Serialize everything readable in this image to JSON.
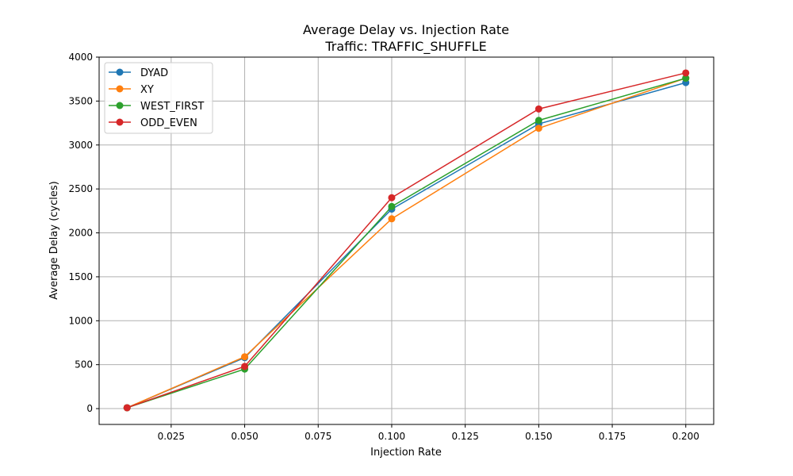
{
  "chart_data": {
    "type": "line",
    "title": "Average Delay vs. Injection Rate",
    "subtitle": "Traffic: TRAFFIC_SHUFFLE",
    "xlabel": "Injection Rate",
    "ylabel": "Average Delay (cycles)",
    "xlim": [
      -0.0,
      0.21
    ],
    "ylim": [
      -180,
      4000
    ],
    "x_ticks": [
      0.025,
      0.05,
      0.075,
      0.1,
      0.125,
      0.15,
      0.175,
      0.2
    ],
    "x_tick_labels": [
      "0.025",
      "0.050",
      "0.075",
      "0.100",
      "0.125",
      "0.150",
      "0.175",
      "0.200"
    ],
    "y_ticks": [
      0,
      500,
      1000,
      1500,
      2000,
      2500,
      3000,
      3500,
      4000
    ],
    "y_tick_labels": [
      "0",
      "500",
      "1000",
      "1500",
      "2000",
      "2500",
      "3000",
      "3500",
      "4000"
    ],
    "grid": true,
    "legend_position": "upper-left",
    "x": [
      0.01,
      0.05,
      0.1,
      0.15,
      0.2
    ],
    "series": [
      {
        "name": "DYAD",
        "color": "#1f77b4",
        "values": [
          10,
          580,
          2270,
          3240,
          3710
        ]
      },
      {
        "name": "XY",
        "color": "#ff7f0e",
        "values": [
          10,
          590,
          2160,
          3190,
          3760
        ]
      },
      {
        "name": "WEST_FIRST",
        "color": "#2ca02c",
        "values": [
          10,
          450,
          2300,
          3280,
          3760
        ]
      },
      {
        "name": "ODD_EVEN",
        "color": "#d62728",
        "values": [
          10,
          480,
          2400,
          3410,
          3820
        ]
      }
    ]
  }
}
